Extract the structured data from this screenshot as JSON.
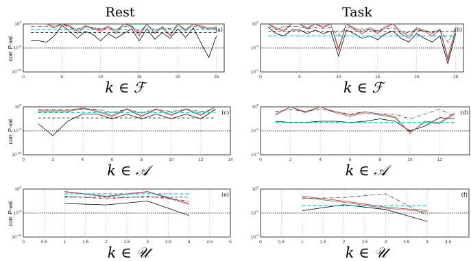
{
  "column_titles": [
    "Rest",
    "Task"
  ],
  "y_axis_label": "corr. P-val.",
  "colors": {
    "black": "#000000",
    "red": "#cc2222",
    "cyan": "#00cccc",
    "dashdot": "#333333",
    "grid": "#888888"
  },
  "chart_data": [
    {
      "type": "line",
      "panel_label": "(a)",
      "xlabel": "k ∈ ℱ",
      "ylabel": "corr. P-val.",
      "xlim": [
        0,
        26
      ],
      "ylim_log10": [
        -10,
        0
      ],
      "yscale": "log",
      "xticks": [
        0,
        5,
        10,
        15,
        20,
        25
      ],
      "yticks": [
        -10,
        -5,
        0
      ],
      "threshold_log10": -5,
      "x": [
        1,
        2,
        3,
        4,
        5,
        6,
        7,
        8,
        9,
        10,
        11,
        12,
        13,
        14,
        15,
        16,
        17,
        18,
        19,
        20,
        21,
        22,
        23,
        24,
        25
      ],
      "series": [
        {
          "style": "solid-black",
          "values": [
            -3.5,
            -3.5,
            -3.8,
            -2.5,
            -0.3,
            -1.5,
            -3.0,
            -1.5,
            -2.2,
            -3.5,
            -2.0,
            -3.0,
            -2.0,
            -1.0,
            -3.5,
            -1.0,
            -3.2,
            -1.8,
            -3.0,
            -1.0,
            -2.8,
            -0.8,
            -4.0,
            -7.0,
            -2.5
          ]
        },
        {
          "style": "solid-red",
          "values": [
            0,
            0,
            0,
            -0.8,
            0,
            -0.5,
            -2.0,
            -0.5,
            -1.0,
            -1.5,
            -0.6,
            -2.0,
            0,
            -0.5,
            -2.5,
            0,
            -2.0,
            -0.8,
            -2.5,
            0,
            -1.5,
            0,
            -0.6,
            -1.0,
            -0.8
          ]
        },
        {
          "style": "solid-gray",
          "values": [
            0,
            0,
            0,
            -0.5,
            0,
            -0.3,
            -1.5,
            -0.3,
            -0.8,
            -1.2,
            -0.4,
            -1.5,
            0,
            -0.3,
            -2.0,
            0,
            -1.8,
            -0.5,
            -2.2,
            0,
            -1.2,
            0,
            -0.4,
            -0.8,
            -0.6
          ]
        },
        {
          "style": "dashdot",
          "values": [
            -0.5,
            -0.5,
            -0.5,
            -0.8,
            0,
            -0.8,
            -1.0,
            -0.6,
            -0.8,
            -1.0,
            -0.8,
            -1.2,
            -0.5,
            -0.6,
            -1.5,
            -0.4,
            -1.2,
            -0.8,
            -1.0,
            -0.5,
            -1.0,
            -0.4,
            -0.8,
            -1.2,
            -0.8
          ]
        },
        {
          "style": "dashed-cyan",
          "values": [
            -1.2,
            -1.2,
            -1.2,
            -1.2,
            -1.2,
            -1.2,
            -1.2,
            -1.2,
            -1.2,
            -1.2,
            -1.2,
            -1.2,
            -1.2,
            -1.2,
            -1.2,
            -1.2,
            -1.2,
            -1.2,
            -1.2,
            -1.2,
            -1.2,
            -1.2,
            -1.2,
            -1.2,
            -1.2
          ]
        },
        {
          "style": "dashed-black",
          "values": [
            -1.8,
            -1.8,
            -1.8,
            -1.8,
            -1.8,
            -1.8,
            -1.8,
            -1.8,
            -1.8,
            -1.8,
            -1.8,
            -1.8,
            -1.8,
            -1.8,
            -1.8,
            -1.8,
            -1.8,
            -1.8,
            -1.8,
            -1.8,
            -1.8,
            -1.8,
            -1.8,
            -1.8,
            -1.8
          ]
        }
      ]
    },
    {
      "type": "line",
      "panel_label": "(b)",
      "xlabel": "k ∈ ℱ",
      "ylabel": "",
      "xlim": [
        0,
        26
      ],
      "ylim_log10": [
        -4,
        0
      ],
      "yscale": "log",
      "xticks": [
        0,
        5,
        10,
        15,
        20,
        25
      ],
      "yticks": [
        -4,
        -2,
        0
      ],
      "threshold_log10": -2,
      "x": [
        1,
        2,
        3,
        4,
        5,
        6,
        7,
        8,
        9,
        10,
        11,
        12,
        13,
        14,
        15,
        16,
        17,
        18,
        19,
        20,
        21,
        22,
        23,
        24,
        25
      ],
      "series": [
        {
          "style": "solid-black",
          "values": [
            -0.3,
            -0.8,
            -1.0,
            -0.5,
            -0.5,
            -0.8,
            -0.5,
            -0.8,
            -0.6,
            -2.7,
            -0.5,
            -0.8,
            -1.2,
            -1.0,
            -1.3,
            -0.8,
            -0.6,
            -1.2,
            -1.5,
            -0.8,
            -1.2,
            -1.5,
            -1.0,
            -3.3,
            -0.8
          ]
        },
        {
          "style": "solid-red",
          "values": [
            0,
            -0.4,
            -0.6,
            0,
            0,
            -0.4,
            0,
            -0.3,
            0,
            -2.2,
            0,
            -0.4,
            -0.8,
            -0.4,
            -0.8,
            -0.3,
            0,
            -0.8,
            -1.2,
            -0.4,
            -0.6,
            -1.0,
            -0.5,
            -3.0,
            -0.5
          ]
        },
        {
          "style": "solid-gray",
          "values": [
            0,
            -0.3,
            -0.5,
            0,
            0,
            -0.3,
            0,
            -0.2,
            0,
            -2.0,
            0,
            -0.3,
            -0.6,
            -0.3,
            -0.6,
            -0.2,
            0,
            -0.6,
            -1.0,
            -0.3,
            -0.5,
            -0.8,
            -0.4,
            -2.8,
            -0.4
          ]
        },
        {
          "style": "dashdot",
          "values": [
            -0.2,
            -0.5,
            -0.2,
            -0.2,
            -0.2,
            -0.4,
            -0.3,
            -0.4,
            -0.3,
            -1.0,
            -0.2,
            -0.5,
            -0.4,
            -0.5,
            -0.6,
            -0.4,
            -0.3,
            -0.8,
            -0.7,
            -0.5,
            -0.6,
            -0.7,
            -0.5,
            -1.5,
            -0.4
          ]
        },
        {
          "style": "dashed-cyan",
          "values": [
            -1.0,
            -1.0,
            -1.0,
            -1.0,
            -1.0,
            -1.0,
            -1.0,
            -1.0,
            -1.0,
            -1.0,
            -1.0,
            -1.0,
            -1.0,
            -1.0,
            -1.0,
            -1.0,
            -1.0,
            -1.0,
            -1.0,
            -1.0,
            -1.0,
            -1.0,
            -1.0,
            -1.0,
            -1.0
          ]
        },
        {
          "style": "dashed-black",
          "values": [
            -0.6,
            -0.6,
            -0.6,
            -0.6,
            -0.6,
            -0.6,
            -0.6,
            -0.6,
            -0.6,
            -0.6,
            -0.6,
            -0.6,
            -0.6,
            -0.6,
            -0.6,
            -0.6,
            -0.6,
            -0.6,
            -0.6,
            -0.6,
            -0.6,
            -0.6,
            -0.6,
            -0.6,
            -0.6
          ]
        }
      ]
    },
    {
      "type": "line",
      "panel_label": "(c)",
      "xlabel": "k ∈ 𝒜",
      "ylabel": "corr. P-val.",
      "xlim": [
        0,
        14
      ],
      "ylim_log10": [
        -10,
        0
      ],
      "yscale": "log",
      "xticks": [
        0,
        2,
        4,
        6,
        8,
        10,
        12,
        14
      ],
      "yticks": [
        -10,
        -5,
        0
      ],
      "threshold_log10": -5,
      "x": [
        1,
        2,
        3,
        4,
        5,
        6,
        7,
        8,
        9,
        10,
        11,
        12,
        13
      ],
      "series": [
        {
          "style": "solid-black",
          "values": [
            -3.5,
            -6.0,
            -3.0,
            -1.5,
            -1.5,
            -2.5,
            -1.5,
            -2.5,
            -1.5,
            -2.5,
            -1.5,
            -2.5,
            -0.5
          ]
        },
        {
          "style": "solid-red",
          "values": [
            -1.0,
            -1.0,
            -1.0,
            -0.3,
            -1.0,
            -2.0,
            -0.5,
            -2.0,
            -0.5,
            -1.8,
            -0.5,
            -1.8,
            0
          ]
        },
        {
          "style": "solid-gray",
          "values": [
            -0.8,
            -0.8,
            -0.8,
            -0.2,
            -0.8,
            -1.8,
            -0.4,
            -1.8,
            -0.4,
            -1.6,
            -0.4,
            -1.6,
            0
          ]
        },
        {
          "style": "dashdot",
          "values": [
            -0.5,
            -0.5,
            -0.5,
            -0.5,
            -0.5,
            -1.2,
            -0.5,
            -1.2,
            -0.5,
            -1.0,
            -0.5,
            -1.0,
            -0.5
          ]
        },
        {
          "style": "dashed-cyan",
          "values": [
            -1.2,
            -1.2,
            -1.2,
            -1.2,
            -1.2,
            -1.2,
            -1.2,
            -1.2,
            -1.2,
            -1.2,
            -1.2,
            -1.2,
            -1.2
          ]
        },
        {
          "style": "dashed-black",
          "values": [
            -2.3,
            -2.3,
            -2.3,
            -2.3,
            -2.3,
            -2.3,
            -2.3,
            -2.3,
            -2.3,
            -2.3,
            -2.3,
            -2.3,
            -2.3
          ]
        }
      ]
    },
    {
      "type": "line",
      "panel_label": "(d)",
      "xlabel": "k ∈ 𝒜",
      "ylabel": "",
      "xlim": [
        0,
        14
      ],
      "ylim_log10": [
        -4,
        0
      ],
      "yscale": "log",
      "xticks": [
        0,
        2,
        4,
        6,
        8,
        10,
        12
      ],
      "yticks": [
        -4,
        -2,
        0
      ],
      "threshold_log10": -2,
      "x": [
        1,
        2,
        3,
        4,
        5,
        6,
        7,
        8,
        9,
        10,
        11,
        12,
        13
      ],
      "series": [
        {
          "style": "solid-black",
          "values": [
            -1.2,
            -1.3,
            -1.3,
            -1.2,
            -1.2,
            -1.3,
            -1.2,
            -1.0,
            -1.2,
            -2.0,
            -1.6,
            -0.9,
            -1.0
          ]
        },
        {
          "style": "solid-red",
          "values": [
            -0.6,
            0,
            -0.4,
            0,
            -0.4,
            -0.7,
            -0.4,
            -0.6,
            -0.8,
            -2.2,
            -1.2,
            -1.3,
            -0.5
          ]
        },
        {
          "style": "solid-gray",
          "values": [
            -0.7,
            0,
            -0.5,
            0,
            -0.5,
            -0.8,
            -0.5,
            -0.7,
            -0.9,
            -2.1,
            -1.3,
            -1.4,
            -0.6
          ]
        },
        {
          "style": "dashdot",
          "values": [
            -0.4,
            -0.2,
            -0.4,
            -0.2,
            -0.4,
            -0.6,
            -0.4,
            -0.6,
            -0.6,
            -1.0,
            -0.6,
            -0.2,
            -0.8
          ]
        },
        {
          "style": "dashed-cyan",
          "values": [
            -1.3,
            -1.3,
            -1.3,
            -1.3,
            -1.3,
            -1.3,
            -1.3,
            -1.3,
            -1.3,
            -1.3,
            -1.3,
            -1.3,
            -1.3
          ]
        }
      ]
    },
    {
      "type": "line",
      "panel_label": "(e)",
      "xlabel": "k ∈ 𝒰",
      "ylabel": "corr. P-val.",
      "xlim": [
        0,
        5
      ],
      "ylim_log10": [
        -10,
        0
      ],
      "yscale": "log",
      "xticks": [
        0,
        0.5,
        1,
        1.5,
        2,
        2.5,
        3,
        3.5,
        4,
        4.5,
        5
      ],
      "yticks": [
        -10,
        -5,
        0
      ],
      "threshold_log10": -5,
      "x": [
        1,
        2,
        3,
        4
      ],
      "series": [
        {
          "style": "solid-black",
          "values": [
            -3.0,
            -3.3,
            -2.5,
            -5.5
          ]
        },
        {
          "style": "solid-red",
          "values": [
            -0.5,
            -1.5,
            -0.5,
            -3.0
          ]
        },
        {
          "style": "solid-gray",
          "values": [
            -0.6,
            -1.6,
            -0.6,
            -3.2
          ]
        },
        {
          "style": "dashdot",
          "values": [
            -1.5,
            -2.0,
            -1.5,
            -2.5
          ]
        },
        {
          "style": "dashed-cyan",
          "values": [
            -1.0,
            -1.0,
            -1.0,
            -1.0
          ]
        },
        {
          "style": "dashed-black",
          "values": [
            -1.7,
            -1.7,
            -1.7,
            -1.7
          ]
        }
      ]
    },
    {
      "type": "line",
      "panel_label": "(f)",
      "xlabel": "k ∈ 𝒰",
      "ylabel": "",
      "xlim": [
        0,
        5
      ],
      "ylim_log10": [
        -4,
        0
      ],
      "yscale": "log",
      "xticks": [
        0,
        0.5,
        1,
        1.5,
        2,
        2.5,
        3,
        3.5,
        4,
        4.5
      ],
      "yticks": [
        -4,
        -2,
        0
      ],
      "threshold_log10": -2,
      "x": [
        1,
        2,
        3,
        4
      ],
      "series": [
        {
          "style": "solid-black",
          "values": [
            -1.8,
            -1.3,
            -1.7,
            -2.7
          ]
        },
        {
          "style": "solid-red",
          "values": [
            -0.6,
            -1.0,
            -1.5,
            -1.8
          ]
        },
        {
          "style": "solid-gray",
          "values": [
            -0.7,
            -1.1,
            -1.6,
            -1.9
          ]
        },
        {
          "style": "dashdot",
          "values": [
            -0.8,
            -0.7,
            -0.4,
            -2.2
          ]
        },
        {
          "style": "dashed-cyan",
          "values": [
            -1.4,
            -1.4,
            -1.4,
            -1.4
          ]
        }
      ]
    }
  ]
}
